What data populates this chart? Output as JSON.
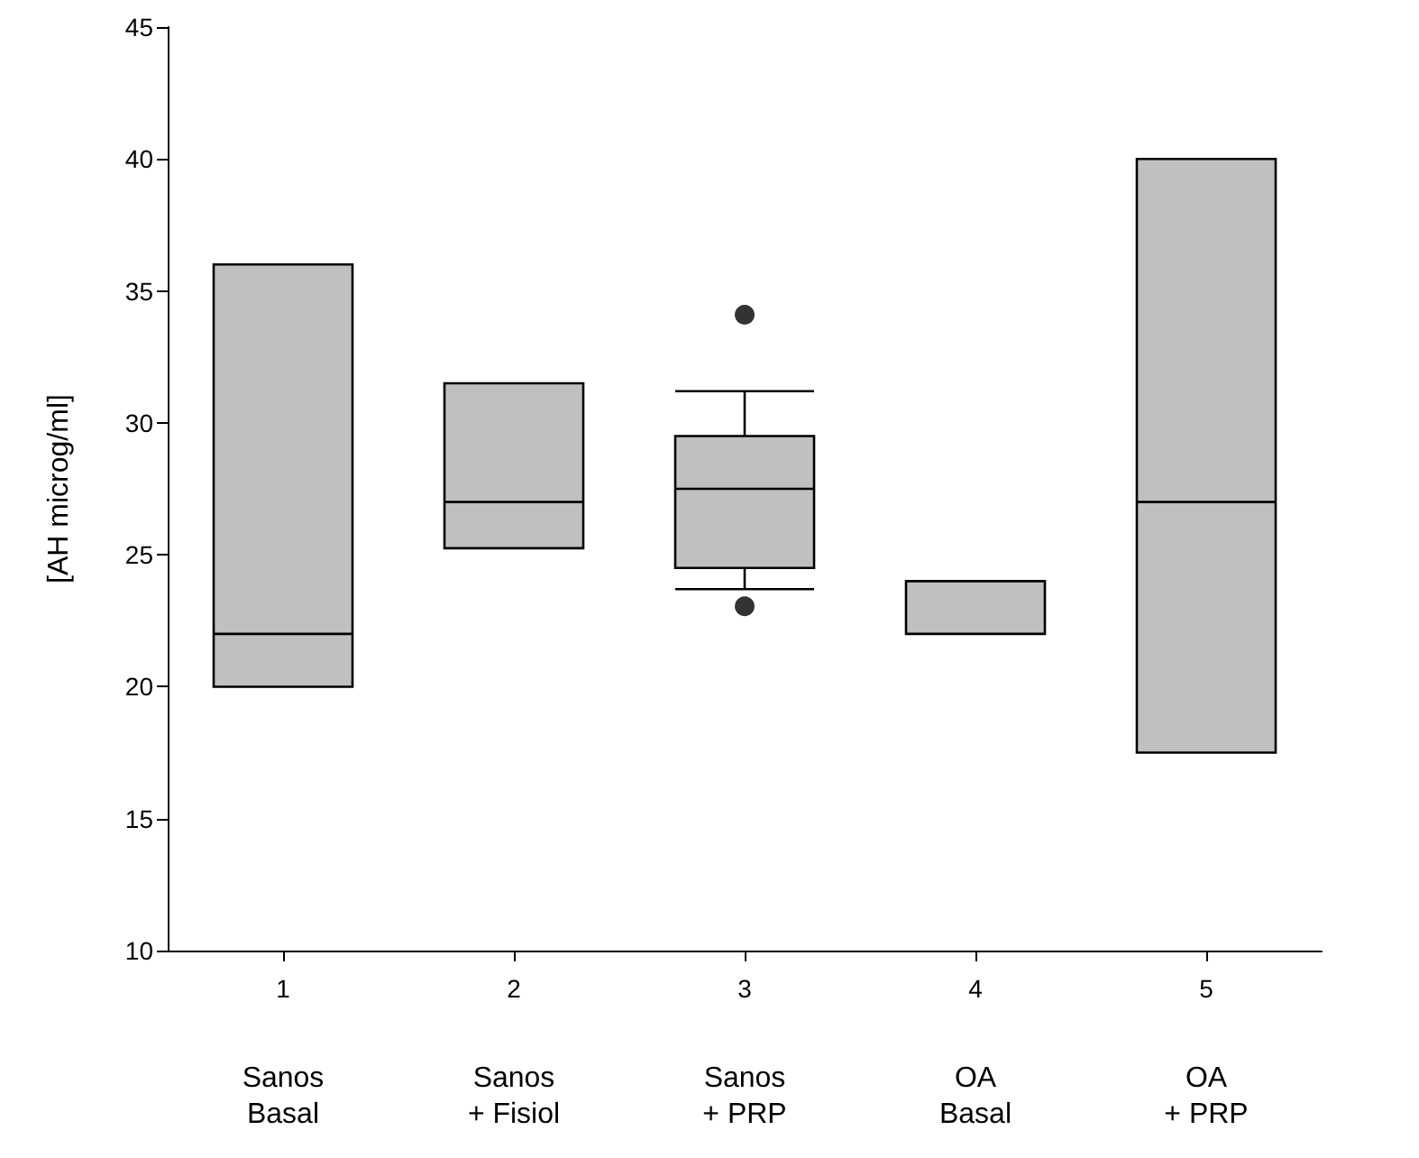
{
  "chart_data": {
    "type": "box",
    "ylabel": "[AH microg/ml]",
    "categories": [
      "1",
      "2",
      "3",
      "4",
      "5"
    ],
    "ylim": [
      10,
      45
    ],
    "yticks": [
      10,
      15,
      20,
      25,
      30,
      35,
      40,
      45
    ],
    "grid": false,
    "series": [
      {
        "color": "#c0c0c0",
        "boxes": [
          {
            "low": 20,
            "q1": 20,
            "median": 22,
            "q3": 36,
            "high": 36
          },
          {
            "low": 25.25,
            "q1": 25.25,
            "median": 27,
            "q3": 31.5,
            "high": 31.5
          },
          {
            "low": 23.7,
            "q1": 24.5,
            "median": 27.5,
            "q3": 29.5,
            "high": 31.2,
            "outliers": [
              34.1,
              23.05
            ]
          },
          {
            "low": 22,
            "q1": 22,
            "median": 22,
            "q3": 24,
            "high": 24
          },
          {
            "low": 17.5,
            "q1": 17.5,
            "median": 27,
            "q3": 40,
            "high": 40
          }
        ]
      }
    ],
    "annotations": [
      "Sanos\nBasal",
      "Sanos\n+ Fisiol",
      "Sanos\n+ PRP",
      "OA\nBasal",
      "OA\n+ PRP"
    ]
  }
}
